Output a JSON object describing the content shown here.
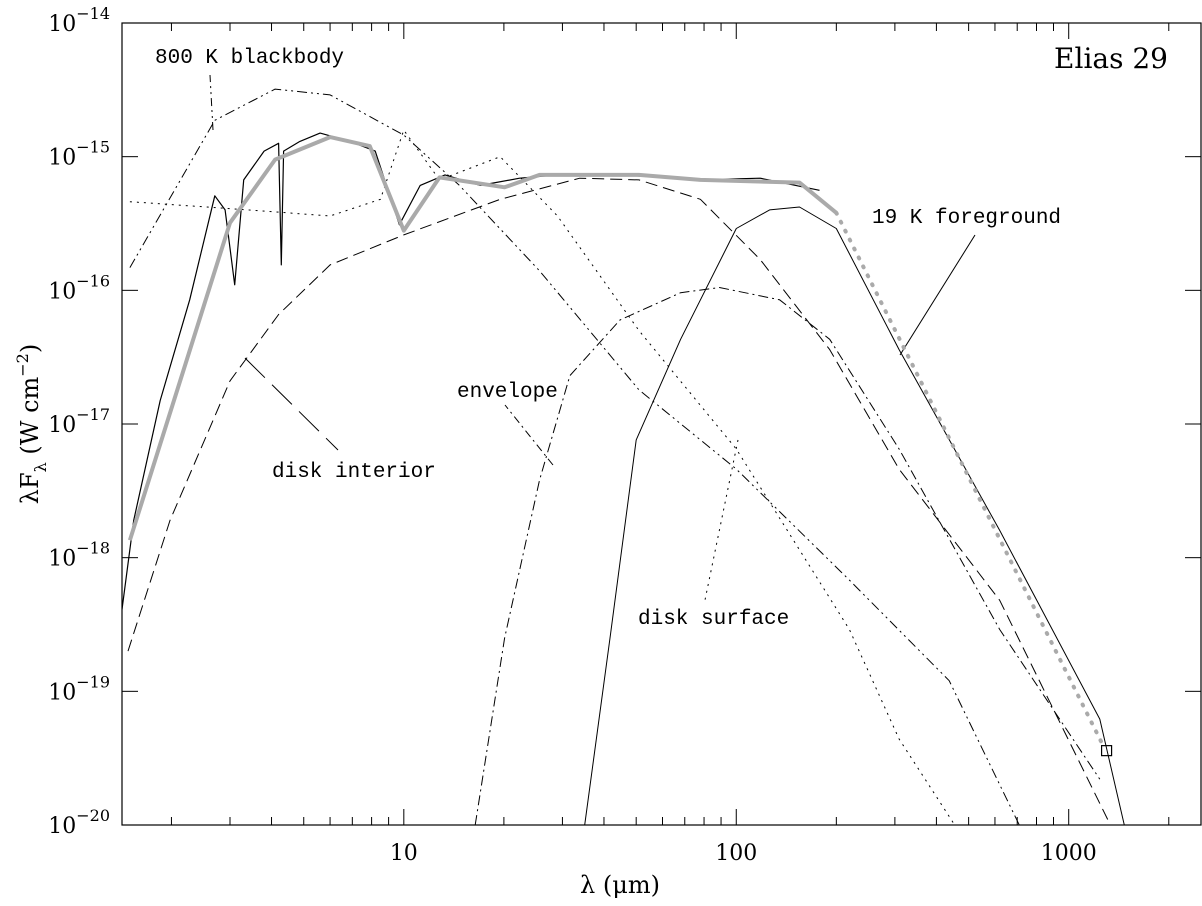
{
  "chart_data": {
    "type": "line",
    "title": "Elias 29",
    "xlabel": "λ (μm)",
    "ylabel": {
      "main": "λF",
      "sub": "λ",
      "rest": " (W cm",
      "sup": "−2",
      "end": ")"
    },
    "xscale": "log",
    "yscale": "log",
    "xlim": [
      1.42,
      2500
    ],
    "ylim": [
      1e-20,
      1e-14
    ],
    "xticks": [
      10,
      100,
      1000
    ],
    "xticks_minor": [
      2,
      3,
      4,
      5,
      6,
      7,
      8,
      9,
      20,
      30,
      40,
      50,
      60,
      70,
      80,
      90,
      200,
      300,
      400,
      500,
      600,
      700,
      800,
      900,
      2000
    ],
    "yticks": [
      {
        "value": 1e-20,
        "label": "10",
        "exponent": "−20"
      },
      {
        "value": 1e-19,
        "label": "10",
        "exponent": "−19"
      },
      {
        "value": 1e-18,
        "label": "10",
        "exponent": "−18"
      },
      {
        "value": 1e-17,
        "label": "10",
        "exponent": "−17"
      },
      {
        "value": 1e-16,
        "label": "10",
        "exponent": "−16"
      },
      {
        "value": 1e-15,
        "label": "10",
        "exponent": "−15"
      },
      {
        "value": 1e-14,
        "label": "10",
        "exponent": "−14"
      }
    ],
    "series": [
      {
        "color": "#000000",
        "style": "solid",
        "width": 1.2,
        "x": [
          1.42,
          1.54,
          1.85,
          2.27,
          2.7,
          2.9,
          3.1,
          3.3,
          3.8,
          4.2,
          4.28,
          4.35,
          4.87,
          5.6,
          6.9,
          8.2,
          9.7,
          11.2,
          13.3,
          17,
          22.3,
          29,
          44.7,
          78,
          118,
          178
        ],
        "values": [
          4.1e-19,
          1.9e-18,
          1.5e-17,
          8.5e-17,
          5.1e-16,
          4e-16,
          1.1e-16,
          6.7e-16,
          1.1e-15,
          1.26e-15,
          1.55e-16,
          1.1e-15,
          1.3e-15,
          1.5e-15,
          1.3e-15,
          1.1e-15,
          3.1e-16,
          6.1e-16,
          7.3e-16,
          6.1e-16,
          6.9e-16,
          7.3e-16,
          7.3e-16,
          6.7e-16,
          6.9e-16,
          5.6e-16
        ]
      },
      {
        "color": "#aaaaaa",
        "style": "solid",
        "width": 4,
        "x": [
          1.5,
          3.0,
          4.1,
          6.0,
          7.9,
          10,
          12.8,
          20.1,
          25.6,
          51,
          78,
          155,
          200
        ],
        "values": [
          1.35e-18,
          3.2e-16,
          9.5e-16,
          1.4e-15,
          1.2e-15,
          2.8e-16,
          7e-16,
          5.9e-16,
          7.3e-16,
          7.3e-16,
          6.7e-16,
          6.4e-16,
          3.8e-16
        ]
      },
      {
        "color": "#aaaaaa",
        "style": "dotted-thick",
        "width": 4,
        "x": [
          200,
          1265
        ],
        "values": [
          3.8e-16,
          4e-20
        ]
      },
      {
        "color": "#000000",
        "style": "marker",
        "marker": "square",
        "x": [
          1300
        ],
        "values": [
          3.6e-20
        ]
      },
      {
        "name": "800 K blackbody",
        "color": "#000000",
        "style": "dashdotdot",
        "width": 1,
        "x": [
          1.5,
          2.7,
          4.1,
          6.0,
          10,
          14.7,
          25.6,
          51,
          100,
          219,
          437,
          710
        ],
        "values": [
          1.48e-16,
          1.87e-15,
          3.2e-15,
          2.9e-15,
          1.45e-15,
          6.1e-16,
          1.4e-16,
          1.8e-17,
          4.6e-18,
          6.8e-19,
          1.2e-19,
          1e-20
        ]
      },
      {
        "name": "disk surface",
        "color": "#000000",
        "style": "dotted",
        "width": 1,
        "x": [
          1.5,
          3.4,
          6.0,
          8.5,
          10,
          12.8,
          19.5,
          29,
          51,
          100,
          219,
          309,
          454
        ],
        "values": [
          4.6e-16,
          4e-16,
          3.6e-16,
          4.8e-16,
          1.58e-15,
          6.7e-16,
          1e-15,
          3.6e-16,
          5e-17,
          6.5e-18,
          2.9e-19,
          4.4e-20,
          1e-20
        ]
      },
      {
        "name": "disk interior",
        "color": "#000000",
        "style": "dashed",
        "width": 1,
        "x": [
          1.48,
          1.98,
          3.0,
          4.2,
          6.0,
          10,
          19.5,
          33.8,
          51,
          78,
          118,
          191,
          309,
          620,
          1310
        ],
        "values": [
          2e-19,
          1.9e-18,
          2.1e-17,
          6.6e-17,
          1.55e-16,
          2.6e-16,
          4.8e-16,
          6.9e-16,
          6.7e-16,
          4.8e-16,
          1.7e-16,
          3.6e-17,
          4.6e-18,
          4.8e-19,
          1.1e-20
        ]
      },
      {
        "name": "envelope",
        "color": "#000000",
        "style": "dashdot",
        "width": 1,
        "x": [
          16.4,
          20.1,
          25.6,
          31.6,
          44.7,
          68,
          89,
          135,
          191,
          309,
          620,
          1240
        ],
        "values": [
          1e-20,
          2.5e-19,
          3.8e-18,
          2.3e-17,
          6e-17,
          9.6e-17,
          1.05e-16,
          8.5e-17,
          4.3e-17,
          6.5e-18,
          2.9e-19,
          2.2e-20
        ]
      },
      {
        "name": "19 K foreground",
        "color": "#000000",
        "style": "solid",
        "width": 1,
        "x": [
          35,
          41.7,
          50,
          68,
          100,
          126,
          155,
          200,
          309,
          620,
          1240,
          1470
        ],
        "values": [
          1e-20,
          2.5e-19,
          7.6e-18,
          4.3e-17,
          2.9e-16,
          4e-16,
          4.2e-16,
          2.9e-16,
          3.6e-17,
          1.6e-18,
          6.2e-20,
          1e-20
        ]
      }
    ]
  }
}
